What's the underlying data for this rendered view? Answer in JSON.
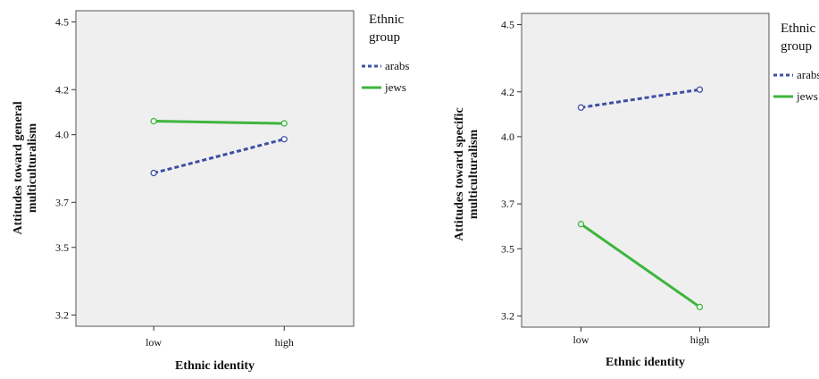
{
  "chart_data": [
    {
      "type": "line",
      "xlabel": "Ethnic identity",
      "ylabel_lines": [
        "Attitudes toward general",
        "multiculturalism"
      ],
      "categories": [
        "low",
        "high"
      ],
      "y_ticks": [
        "3.2",
        "3.5",
        "3.7",
        "4.0",
        "4.2",
        "4.5"
      ],
      "ylim": [
        3.15,
        4.55
      ],
      "legend_title_lines": [
        "Ethnic",
        "group"
      ],
      "legend_placement": "right",
      "grid": false,
      "series": [
        {
          "name": "arabs",
          "values": [
            3.83,
            3.98
          ],
          "color": "#3f4fa6",
          "style": "dashed"
        },
        {
          "name": "jews",
          "values": [
            4.06,
            4.05
          ],
          "color": "#3db53d",
          "style": "solid"
        }
      ]
    },
    {
      "type": "line",
      "xlabel": "Ethnic identity",
      "ylabel_lines": [
        "Attitudes toward specific",
        "multiculturalism"
      ],
      "categories": [
        "low",
        "high"
      ],
      "y_ticks": [
        "3.2",
        "3.5",
        "3.7",
        "4.0",
        "4.2",
        "4.5"
      ],
      "ylim": [
        3.15,
        4.55
      ],
      "legend_title_lines": [
        "Ethnic",
        "group"
      ],
      "legend_placement": "right",
      "grid": false,
      "series": [
        {
          "name": "arabs",
          "values": [
            4.13,
            4.21
          ],
          "color": "#3f4fa6",
          "style": "dashed"
        },
        {
          "name": "jews",
          "values": [
            3.61,
            3.24
          ],
          "color": "#3db53d",
          "style": "solid"
        }
      ]
    }
  ]
}
